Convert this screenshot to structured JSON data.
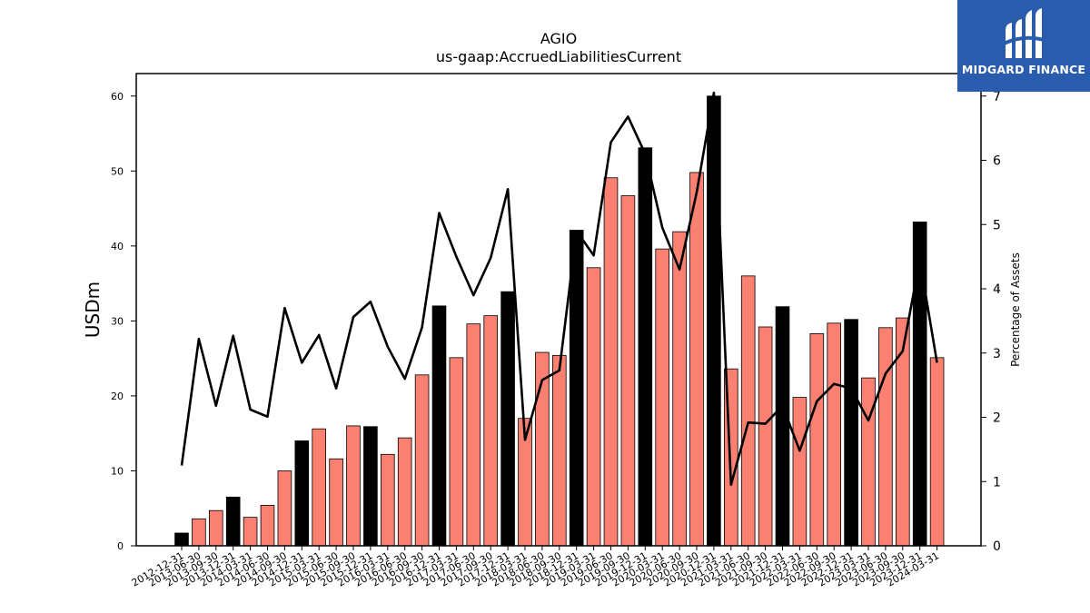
{
  "chart_data": {
    "type": "bar",
    "title": "AGIO",
    "subtitle": "us-gaap:AccruedLiabilitiesCurrent",
    "ylabel": "USDm",
    "y2label": "Percentage of Assets",
    "ylim": [
      0,
      63
    ],
    "y2lim": [
      0,
      7.35
    ],
    "yticks": [
      0,
      10,
      20,
      30,
      40,
      50,
      60
    ],
    "y2ticks": [
      0,
      1,
      2,
      3,
      4,
      5,
      6,
      7
    ],
    "categories": [
      "2012-12-31",
      "2013-06-30",
      "2013-09-30",
      "2013-12-31",
      "2014-03-31",
      "2014-06-30",
      "2014-09-30",
      "2014-12-31",
      "2015-03-31",
      "2015-06-30",
      "2015-09-30",
      "2015-12-31",
      "2016-03-31",
      "2016-06-30",
      "2016-09-30",
      "2016-12-31",
      "2017-03-31",
      "2017-06-30",
      "2017-09-30",
      "2017-12-31",
      "2018-03-31",
      "2018-06-30",
      "2018-09-30",
      "2018-12-31",
      "2019-03-31",
      "2019-06-30",
      "2019-09-30",
      "2019-12-31",
      "2020-03-31",
      "2020-06-30",
      "2020-09-30",
      "2020-12-31",
      "2021-03-31",
      "2021-06-30",
      "2021-09-30",
      "2021-12-31",
      "2022-03-31",
      "2022-06-30",
      "2022-09-30",
      "2022-12-31",
      "2023-03-31",
      "2023-06-30",
      "2023-09-30",
      "2023-12-31",
      "2024-03-31"
    ],
    "series": [
      {
        "kind": "bar",
        "values": [
          1.7,
          3.6,
          4.7,
          6.5,
          3.8,
          5.4,
          10.0,
          14.0,
          15.6,
          11.6,
          16.0,
          15.9,
          12.2,
          14.4,
          22.8,
          32.0,
          25.1,
          29.6,
          30.7,
          33.9,
          17.0,
          25.8,
          25.4,
          42.1,
          37.1,
          49.1,
          46.7,
          53.1,
          39.6,
          41.9,
          49.8,
          60.0,
          23.6,
          36.0,
          29.2,
          31.9,
          19.8,
          28.3,
          29.7,
          30.2,
          22.4,
          29.1,
          30.4,
          43.2,
          25.1
        ],
        "year_end": [
          true,
          false,
          false,
          true,
          false,
          false,
          false,
          true,
          false,
          false,
          false,
          true,
          false,
          false,
          false,
          true,
          false,
          false,
          false,
          true,
          false,
          false,
          false,
          true,
          false,
          false,
          false,
          true,
          false,
          false,
          false,
          true,
          false,
          false,
          false,
          true,
          false,
          false,
          false,
          true,
          false,
          false,
          false,
          true,
          false
        ]
      },
      {
        "kind": "line",
        "axis": "right",
        "values": [
          1.25,
          3.22,
          2.18,
          3.27,
          2.12,
          2.01,
          3.7,
          2.85,
          3.28,
          2.45,
          3.56,
          3.8,
          3.1,
          2.6,
          3.4,
          5.18,
          4.5,
          3.9,
          4.48,
          5.55,
          1.65,
          2.58,
          2.73,
          4.9,
          4.52,
          6.28,
          6.68,
          6.1,
          4.95,
          4.3,
          5.5,
          7.05,
          0.95,
          1.92,
          1.9,
          2.18,
          1.48,
          2.25,
          2.52,
          2.45,
          1.95,
          2.68,
          3.03,
          4.45,
          2.85
        ]
      }
    ],
    "colors": {
      "bar": "#fa8072",
      "bar_year_end": "#000000",
      "line": "#000000",
      "edge": "#000000"
    },
    "grid": false,
    "legend": "none"
  },
  "logo": {
    "text": "MIDGARD FINANCE",
    "background": "#2a5cae"
  }
}
